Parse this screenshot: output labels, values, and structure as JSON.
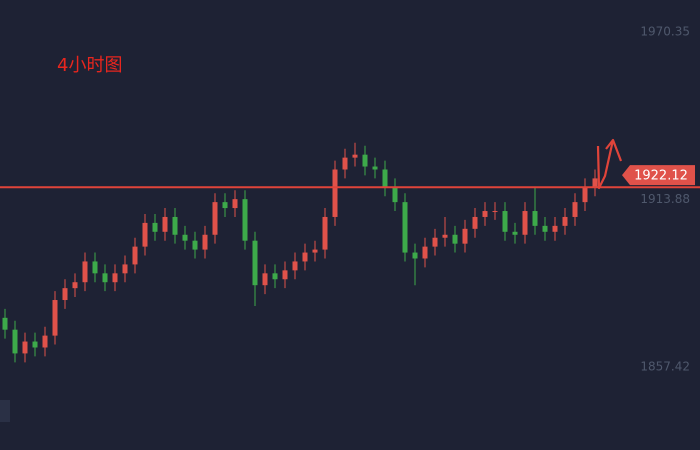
{
  "chart_data": {
    "type": "candlestick",
    "title": "4小时图",
    "open": [
      1874,
      1870,
      1862,
      1866,
      1864,
      1868,
      1880,
      1884,
      1886,
      1893,
      1889,
      1886,
      1889,
      1892,
      1898,
      1906,
      1903,
      1908,
      1902,
      1900,
      1897,
      1902,
      1913,
      1911,
      1914,
      1900,
      1885,
      1889,
      1887,
      1890,
      1893,
      1896,
      1897,
      1908,
      1924,
      1928,
      1929,
      1925,
      1924,
      1918,
      1913,
      1896,
      1894,
      1898,
      1901,
      1902,
      1899,
      1904,
      1908,
      1910,
      1910,
      1903,
      1902,
      1910,
      1905,
      1903,
      1905,
      1908,
      1913,
      1918
    ],
    "high": [
      1877,
      1873,
      1869,
      1869,
      1871,
      1883,
      1887,
      1889,
      1896,
      1896,
      1892,
      1892,
      1895,
      1901,
      1909,
      1909,
      1911,
      1911,
      1905,
      1903,
      1905,
      1916,
      1916,
      1917,
      1917,
      1903,
      1892,
      1892,
      1893,
      1896,
      1899,
      1900,
      1911,
      1927,
      1931,
      1933,
      1932,
      1928,
      1927,
      1921,
      1916,
      1899,
      1901,
      1904,
      1908,
      1905,
      1907,
      1911,
      1913,
      1913,
      1913,
      1906,
      1913,
      1918,
      1908,
      1908,
      1911,
      1916,
      1921,
      1924
    ],
    "low": [
      1867,
      1859,
      1859,
      1861,
      1861,
      1865,
      1877,
      1881,
      1883,
      1886,
      1883,
      1883,
      1886,
      1889,
      1895,
      1900,
      1900,
      1899,
      1897,
      1894,
      1894,
      1899,
      1908,
      1908,
      1897,
      1878,
      1882,
      1884,
      1884,
      1887,
      1890,
      1893,
      1894,
      1905,
      1921,
      1925,
      1922,
      1921,
      1915,
      1910,
      1893,
      1885,
      1891,
      1895,
      1898,
      1896,
      1896,
      1901,
      1905,
      1907,
      1900,
      1899,
      1899,
      1902,
      1900,
      1900,
      1902,
      1905,
      1910,
      1915
    ],
    "close": [
      1870,
      1862,
      1866,
      1864,
      1868,
      1880,
      1884,
      1886,
      1893,
      1889,
      1886,
      1889,
      1892,
      1898,
      1906,
      1903,
      1908,
      1902,
      1900,
      1897,
      1902,
      1913,
      1911,
      1914,
      1900,
      1885,
      1889,
      1887,
      1890,
      1893,
      1896,
      1897,
      1908,
      1924,
      1928,
      1929,
      1925,
      1924,
      1918,
      1913,
      1896,
      1894,
      1898,
      1901,
      1902,
      1899,
      1904,
      1908,
      1910,
      1910,
      1903,
      1902,
      1910,
      1905,
      1903,
      1905,
      1908,
      1913,
      1918,
      1921
    ],
    "up_color": "#e0524a",
    "down_color": "#3daa4a",
    "ylim": [
      1829.44,
      1981.14
    ],
    "yticks": [
      1857.42,
      1913.88,
      1970.35
    ],
    "current_price": 1922.12,
    "hline": 1918.0,
    "hline_color": "#e0443a"
  }
}
